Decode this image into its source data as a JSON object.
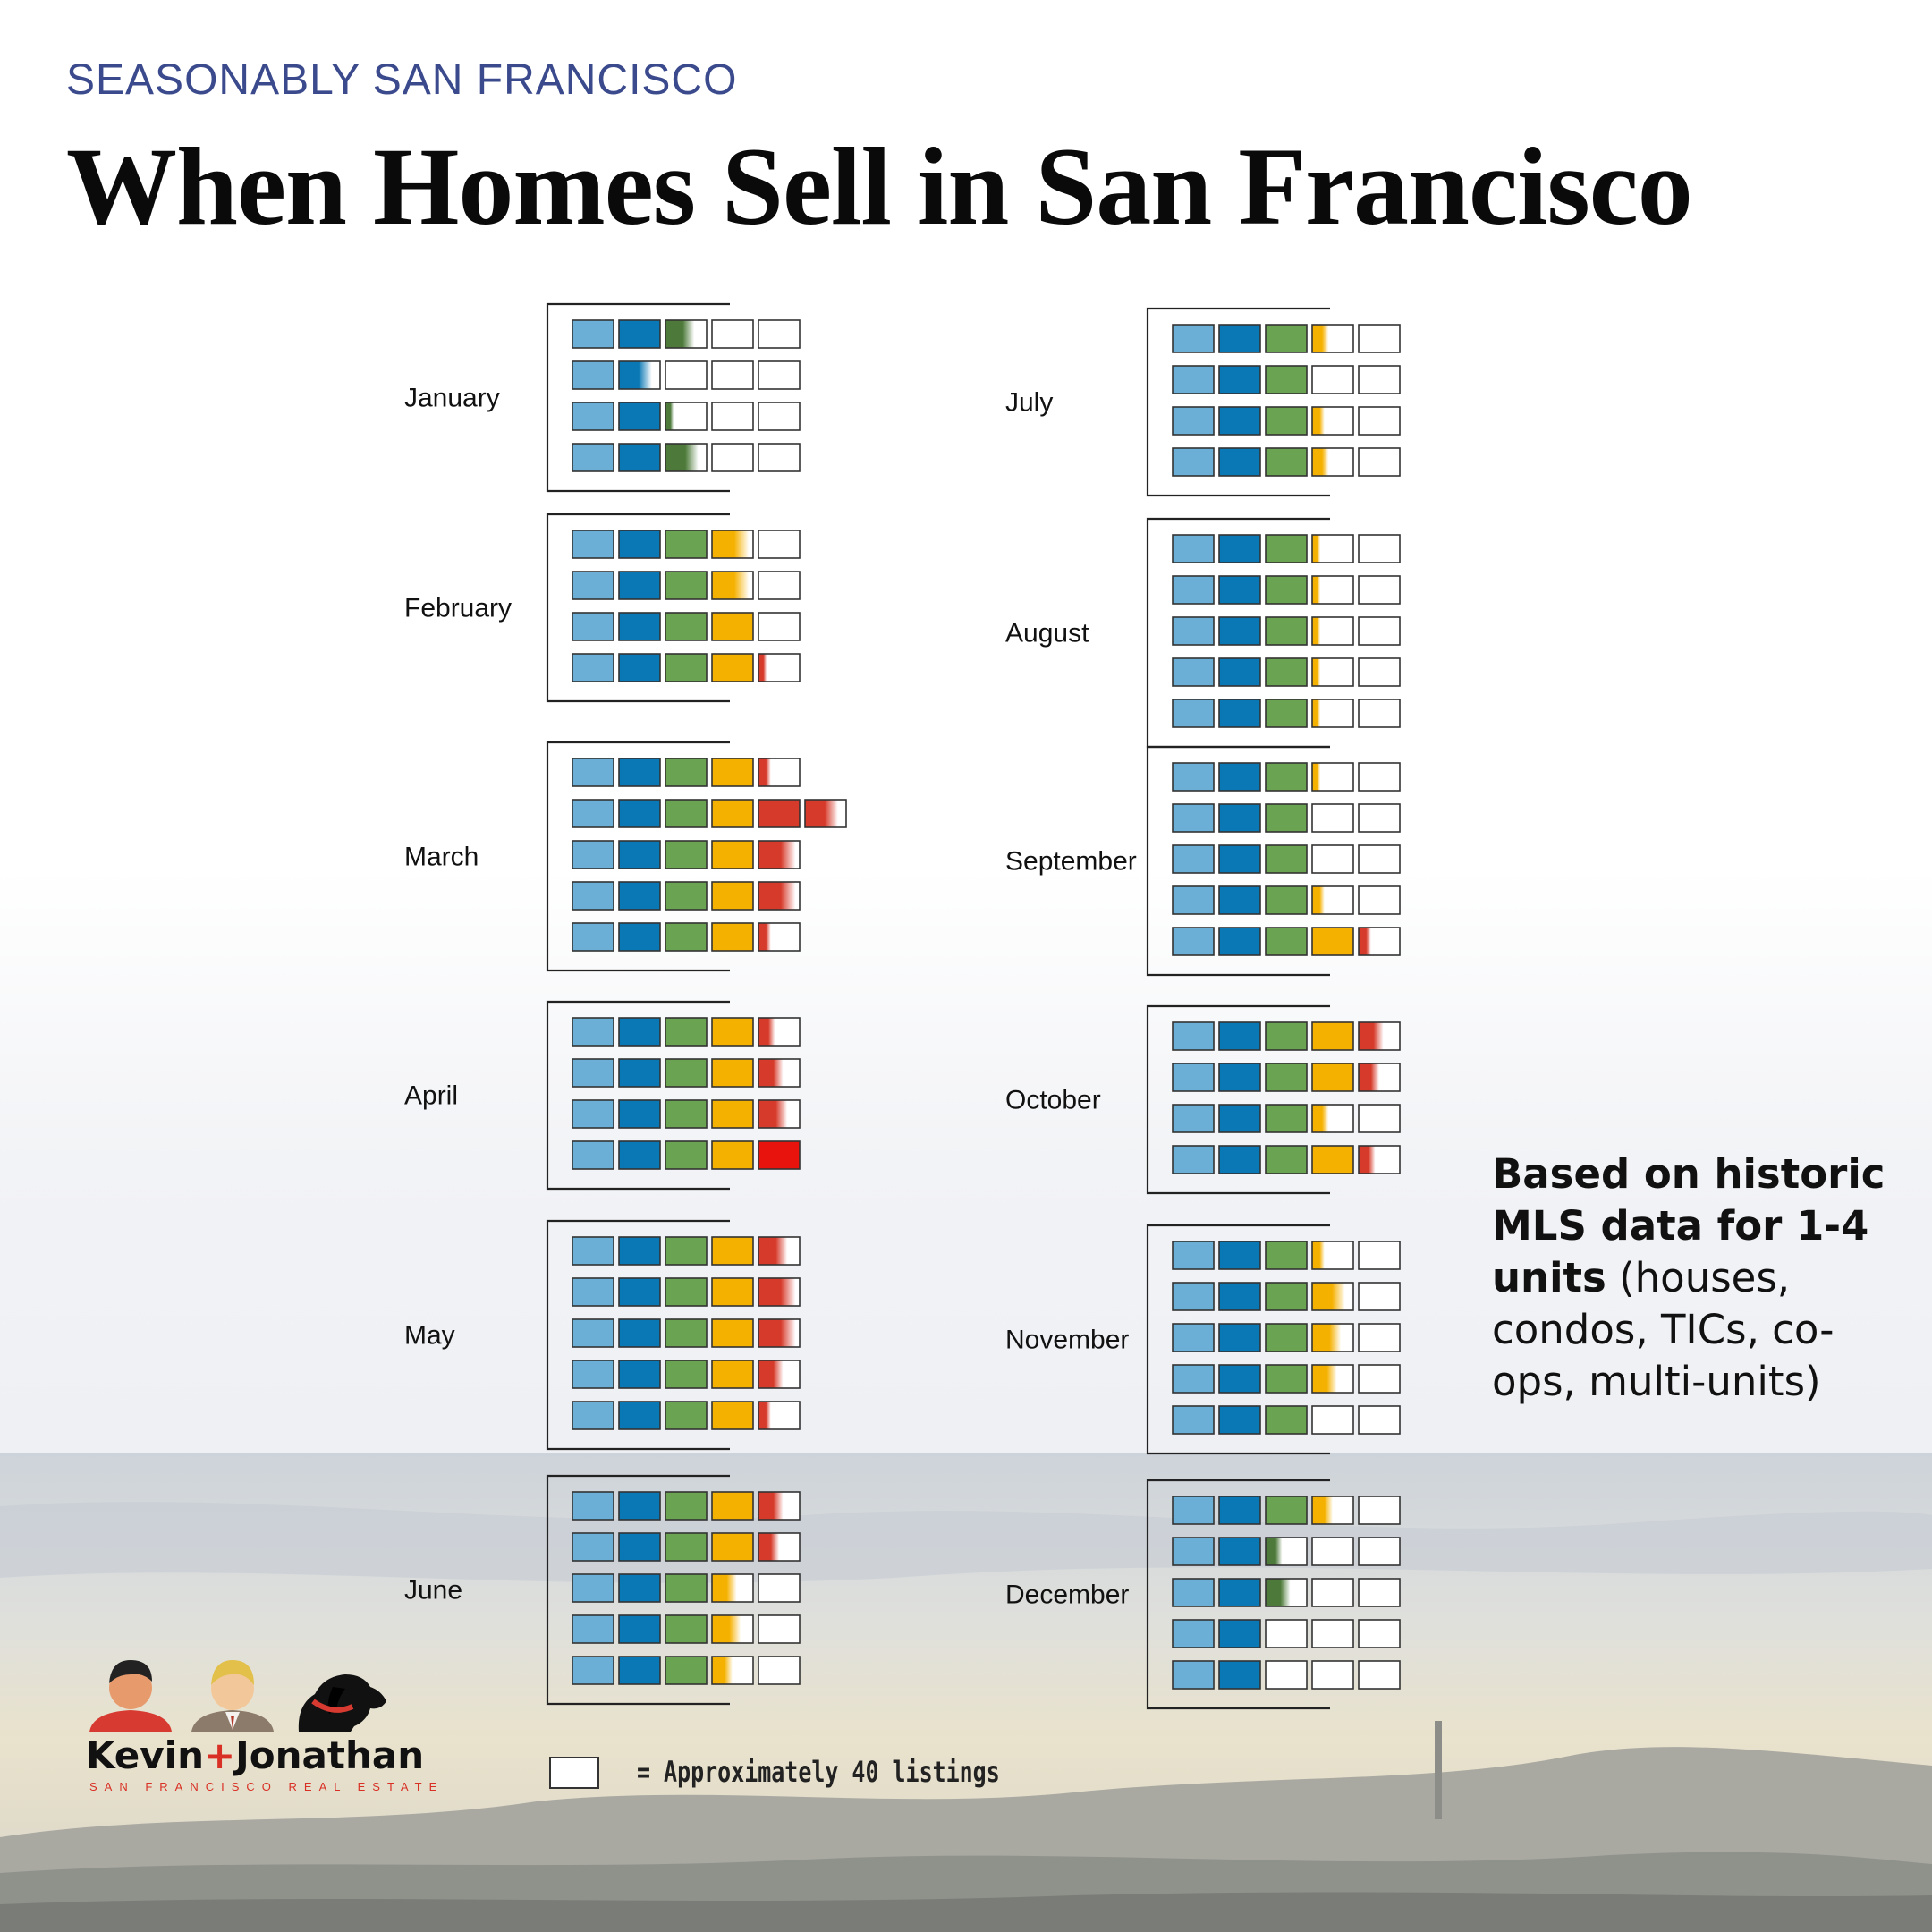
{
  "header": {
    "kicker": "SEASONABLY SAN FRANCISCO",
    "title": "When Homes Sell in San Francisco"
  },
  "note": {
    "bold_text": "Based on historic MLS data for 1-4 units",
    "rest_text": " (houses, condos, TICs, co-ops, multi-units)"
  },
  "legend": {
    "text": "= Approximately 40 listings"
  },
  "logo": {
    "name_left": "Kevin",
    "name_plus": "+",
    "name_right": "Jonathan",
    "subtitle": "SAN FRANCISCO REAL ESTATE",
    "icons": [
      "person-red-shirt-icon",
      "person-suit-icon",
      "dog-red-collar-icon"
    ]
  },
  "colors": {
    "c1": "#6baed6",
    "c2": "#0a78b4",
    "c3": "#6aa352",
    "c4": "#f5b100",
    "c5": "#d63a2a",
    "c5_bright": "#e8130c",
    "grey": "#a0a0a0",
    "frame": "#222222"
  },
  "chart_data": {
    "type": "unit-chart",
    "unit_value": 40,
    "unit_label": "= Approximately 40 listings",
    "months": [
      {
        "name": "January",
        "weeks": [
          2.7,
          1.8,
          2.2,
          2.8
        ]
      },
      {
        "name": "February",
        "weeks": [
          3.9,
          3.9,
          4,
          4.2
        ]
      },
      {
        "name": "March",
        "weeks": [
          4.3,
          5.8,
          4.9,
          4.9,
          4.3
        ]
      },
      {
        "name": "April",
        "weeks": [
          4.4,
          4.6,
          4.7,
          5
        ]
      },
      {
        "name": "May",
        "weeks": [
          4.7,
          4.9,
          4.9,
          4.6,
          4.3
        ]
      },
      {
        "name": "June",
        "weeks": [
          4.6,
          4.5,
          3.6,
          3.7,
          3.5
        ]
      },
      {
        "name": "July",
        "weeks": [
          3.4,
          3,
          3.3,
          3.4
        ]
      },
      {
        "name": "August",
        "weeks": [
          3.2,
          3.2,
          3.2,
          3.2,
          3.2
        ]
      },
      {
        "name": "September",
        "weeks": [
          3.2,
          3,
          3,
          3.3,
          4.3
        ]
      },
      {
        "name": "October",
        "weeks": [
          4.6,
          4.5,
          3.4,
          4.4
        ]
      },
      {
        "name": "November",
        "weeks": [
          3.3,
          3.8,
          3.7,
          3.6,
          3
        ]
      },
      {
        "name": "December",
        "weeks": [
          3.5,
          2.4,
          2.6,
          2,
          2
        ]
      }
    ]
  }
}
